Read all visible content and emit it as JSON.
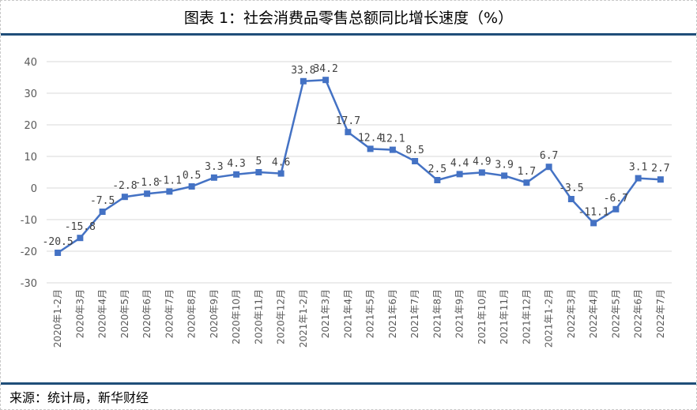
{
  "title": "图表 1：社会消费品零售总额同比增长速度（%）",
  "source": "来源：统计局，新华财经",
  "chart_data": {
    "type": "line",
    "title": "图表 1：社会消费品零售总额同比增长速度（%）",
    "xlabel": "",
    "ylabel": "",
    "ylim": [
      -30,
      40
    ],
    "yticks": [
      -30,
      -20,
      -10,
      0,
      10,
      20,
      30,
      40
    ],
    "grid": true,
    "legend": "none",
    "color": "#4472C4",
    "categories": [
      "2020年1-2月",
      "2020年3月",
      "2020年4月",
      "2020年5月",
      "2020年6月",
      "2020年7月",
      "2020年8月",
      "2020年9月",
      "2020年10月",
      "2020年11月",
      "2020年12月",
      "2021年1-2月",
      "2021年3月",
      "2021年4月",
      "2021年5月",
      "2021年6月",
      "2021年7月",
      "2021年8月",
      "2021年9月",
      "2021年10月",
      "2021年11月",
      "2021年12月",
      "2021年1-2月",
      "2022年3月",
      "2022年4月",
      "2022年5月",
      "2022年6月",
      "2022年7月"
    ],
    "values": [
      -20.5,
      -15.8,
      -7.5,
      -2.8,
      -1.8,
      -1.1,
      0.5,
      3.3,
      4.3,
      5,
      4.6,
      33.8,
      34.2,
      17.7,
      12.4,
      12.1,
      8.5,
      2.5,
      4.4,
      4.9,
      3.9,
      1.7,
      6.7,
      -3.5,
      -11.1,
      -6.7,
      3.1,
      2.7
    ]
  }
}
